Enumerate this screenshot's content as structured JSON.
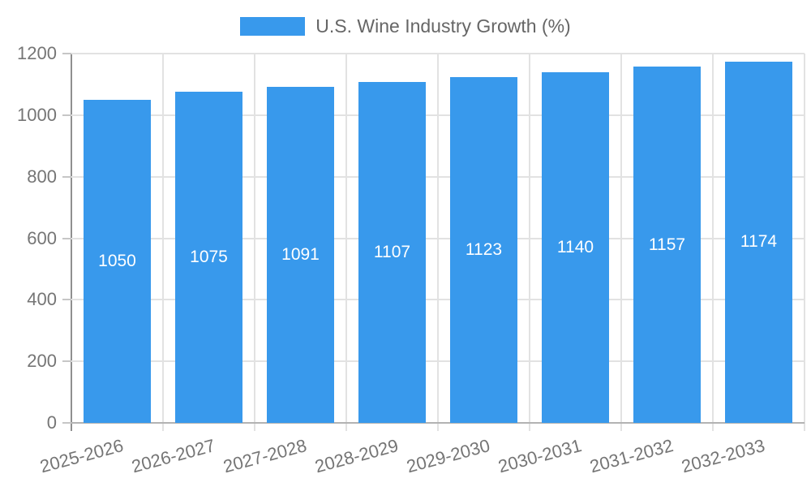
{
  "chart_data": {
    "type": "bar",
    "title": "",
    "legend": "U.S. Wine Industry Growth (%)",
    "legend_position": "top",
    "categories": [
      "2025-2026",
      "2026-2027",
      "2027-2028",
      "2028-2029",
      "2029-2030",
      "2030-2031",
      "2031-2032",
      "2032-2033"
    ],
    "values": [
      1050,
      1075,
      1091,
      1107,
      1123,
      1140,
      1157,
      1174
    ],
    "xlabel": "",
    "ylabel": "",
    "ylim": [
      0,
      1200
    ],
    "ytick_step": 200,
    "yticks": [
      0,
      200,
      400,
      600,
      800,
      1000,
      1200
    ],
    "grid": true,
    "colors": {
      "bar": "#3899EC",
      "bar_value_text": "#ffffff",
      "axis_text": "#757575",
      "legend_text": "#666666",
      "gridline": "#e2e2e2",
      "tick": "#c6c6c6",
      "y_axis_line": "#8f8f8f",
      "x_baseline": "#b3b3b3",
      "background": "#ffffff"
    }
  }
}
